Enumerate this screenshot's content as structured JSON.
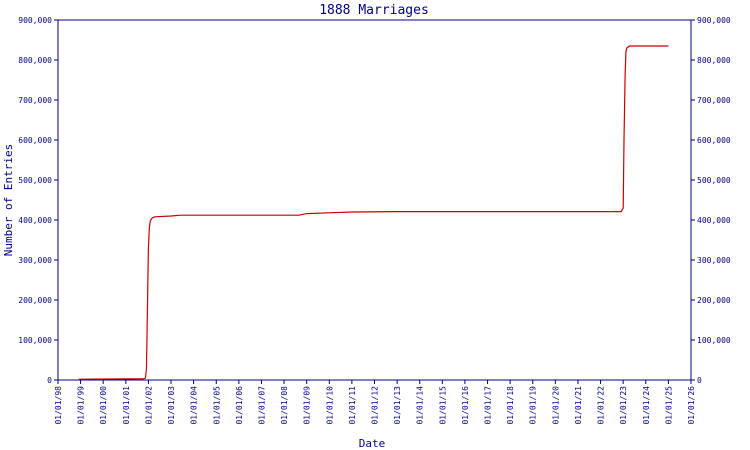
{
  "chart_data": {
    "type": "line",
    "title": "1888 Marriages",
    "xlabel": "Date",
    "ylabel": "Number of Entries",
    "xlim": [
      "01/01/98",
      "01/01/26"
    ],
    "ylim": [
      0,
      900000
    ],
    "y_ticks": [
      0,
      100000,
      200000,
      300000,
      400000,
      500000,
      600000,
      700000,
      800000,
      900000
    ],
    "y_tick_labels": [
      "0",
      "100,000",
      "200,000",
      "300,000",
      "400,000",
      "500,000",
      "600,000",
      "700,000",
      "800,000",
      "900,000"
    ],
    "x_tick_labels": [
      "01/01/98",
      "01/01/99",
      "01/01/00",
      "01/01/01",
      "01/01/02",
      "01/01/03",
      "01/01/04",
      "01/01/05",
      "01/01/06",
      "01/01/07",
      "01/01/08",
      "01/01/09",
      "01/01/10",
      "01/01/11",
      "01/01/12",
      "01/01/13",
      "01/01/14",
      "01/01/15",
      "01/01/16",
      "01/01/17",
      "01/01/18",
      "01/01/19",
      "01/01/20",
      "01/01/21",
      "01/01/22",
      "01/01/23",
      "01/01/24",
      "01/01/25",
      "01/01/26"
    ],
    "right_axis": true,
    "grid": false,
    "line_color": "#cc0000",
    "axis_color": "#000080",
    "series": [
      {
        "x": [
          "1998-12-01",
          "2001-10-15",
          "2001-11-15",
          "2001-12-01",
          "2002-01-01",
          "2002-01-15",
          "2002-02-01",
          "2002-03-01",
          "2002-04-15",
          "2003-01-01",
          "2003-06-01",
          "2004-01-01",
          "2008-09-01",
          "2009-01-01",
          "2010-01-01",
          "2011-01-01",
          "2013-01-01",
          "2015-01-01",
          "2018-01-01",
          "2021-01-01",
          "2022-12-01",
          "2023-01-01",
          "2023-01-15",
          "2023-02-01",
          "2023-02-15",
          "2023-03-01",
          "2023-04-15",
          "2024-01-01",
          "2025-01-01"
        ],
        "y": [
          2000,
          3000,
          5000,
          30000,
          330000,
          380000,
          398000,
          405000,
          408000,
          410000,
          412000,
          412000,
          412000,
          416000,
          418000,
          420000,
          421000,
          421000,
          421000,
          421000,
          421000,
          430000,
          600000,
          760000,
          820000,
          830000,
          835000,
          835000,
          835000
        ]
      }
    ]
  }
}
